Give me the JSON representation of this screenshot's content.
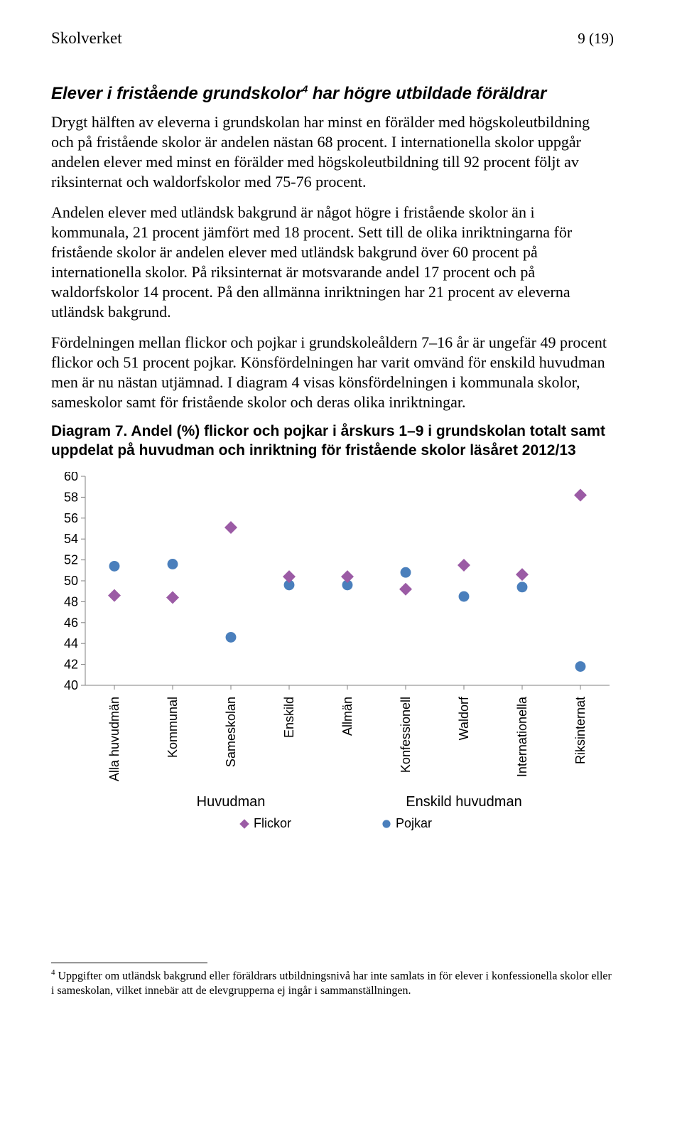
{
  "header": {
    "brand": "Skolverket",
    "page_number": "9 (19)"
  },
  "section_title_parts": {
    "pre": "Elever i fristående grundskolor",
    "sup": "4",
    "post": " har högre utbildade föräldrar"
  },
  "paragraphs": {
    "p1": "Drygt hälften av eleverna i grundskolan har minst en förälder med högskoleutbildning och på fristående skolor är andelen nästan 68 procent. I internationella skolor uppgår andelen elever med minst en förälder med högskoleutbildning till 92 procent följt av riksinternat och waldorfskolor med 75-76 procent.",
    "p2": "Andelen elever med utländsk bakgrund är något högre i fristående skolor än i kommunala, 21 procent jämfört med 18 procent. Sett till de olika inriktningarna för fristående skolor är andelen elever med utländsk bakgrund över 60 procent på internationella skolor. På riksinternat är motsvarande andel 17 procent och på waldorfskolor 14 procent. På den allmänna inriktningen har 21 procent av eleverna utländsk bakgrund.",
    "p3": "Fördelningen mellan flickor och pojkar i grundskoleåldern 7–16 år är ungefär 49 procent flickor och 51 procent pojkar. Könsfördelningen har varit omvänd för enskild huvudman men är nu nästan utjämnad. I diagram 4 visas könsfördelningen i kommunala skolor, sameskolor samt för fristående skolor och deras olika inriktningar."
  },
  "diagram_title": "Diagram 7. Andel (%) flickor och pojkar i årskurs 1–9 i grundskolan totalt samt uppdelat på huvudman och inriktning för fristående skolor läsåret 2012/13",
  "chart": {
    "type": "scatter",
    "background_color": "#ffffff",
    "axis_color": "#808080",
    "ylim": [
      40,
      60
    ],
    "yticks": [
      40,
      42,
      44,
      46,
      48,
      50,
      52,
      54,
      56,
      58,
      60
    ],
    "categories": [
      "Alla huvudmän",
      "Kommunal",
      "Sameskolan",
      "Enskild",
      "Allmän",
      "Konfessionell",
      "Waldorf",
      "Internationella",
      "Riksinternat"
    ],
    "groups": [
      {
        "label": "Huvudman",
        "span": [
          1,
          3
        ]
      },
      {
        "label": "Enskild huvudman",
        "span": [
          4,
          8
        ]
      }
    ],
    "series": {
      "flickor": {
        "label": "Flickor",
        "marker": "diamond",
        "color": "#9b5ba5",
        "size": 12,
        "values": [
          48.6,
          48.4,
          55.1,
          50.4,
          50.4,
          49.2,
          51.5,
          50.6,
          58.2
        ]
      },
      "pojkar": {
        "label": "Pojkar",
        "marker": "circle",
        "color": "#4a7fbc",
        "size": 12,
        "values": [
          51.4,
          51.6,
          44.6,
          49.6,
          49.6,
          50.8,
          48.5,
          49.4,
          41.8
        ]
      }
    },
    "label_fontsize": 18,
    "tick_fontsize": 18
  },
  "footnote": {
    "sup": "4",
    "text": " Uppgifter om utländsk bakgrund eller föräldrars utbildningsnivå har inte samlats in för elever i konfessionella skolor eller i sameskolan, vilket innebär att de elevgrupperna ej ingår i sammanställningen."
  }
}
